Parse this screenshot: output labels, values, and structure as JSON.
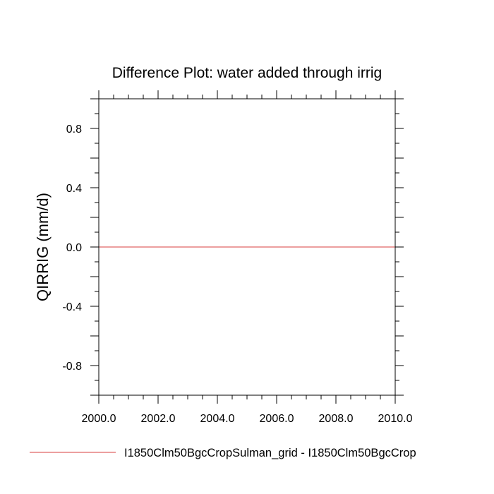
{
  "chart_data": {
    "type": "line",
    "title": "Difference Plot: water added through irrig",
    "xlabel": "",
    "ylabel": "QIRRIG  (mm/d)",
    "xlim": [
      2000,
      2010
    ],
    "ylim": [
      -1,
      1
    ],
    "x_ticks": [
      "2000.0",
      "2002.0",
      "2004.0",
      "2006.0",
      "2008.0",
      "2010.0"
    ],
    "x_tick_values": [
      2000,
      2002,
      2004,
      2006,
      2008,
      2010
    ],
    "x_minor_step": 0.5,
    "y_ticks": [
      "0.8",
      "0.4",
      "0.0",
      "-0.4",
      "-0.8"
    ],
    "y_tick_values": [
      0.8,
      0.4,
      0.0,
      -0.4,
      -0.8
    ],
    "y_minor_step": 0.1,
    "grid": false,
    "legend_position": "bottom",
    "series": [
      {
        "name": "I1850Clm50BgcCropSulman_grid - I1850Clm50BgcCrop",
        "color": "#e06666",
        "x": [
          2000,
          2010
        ],
        "y": [
          0.0,
          0.0
        ]
      }
    ]
  }
}
